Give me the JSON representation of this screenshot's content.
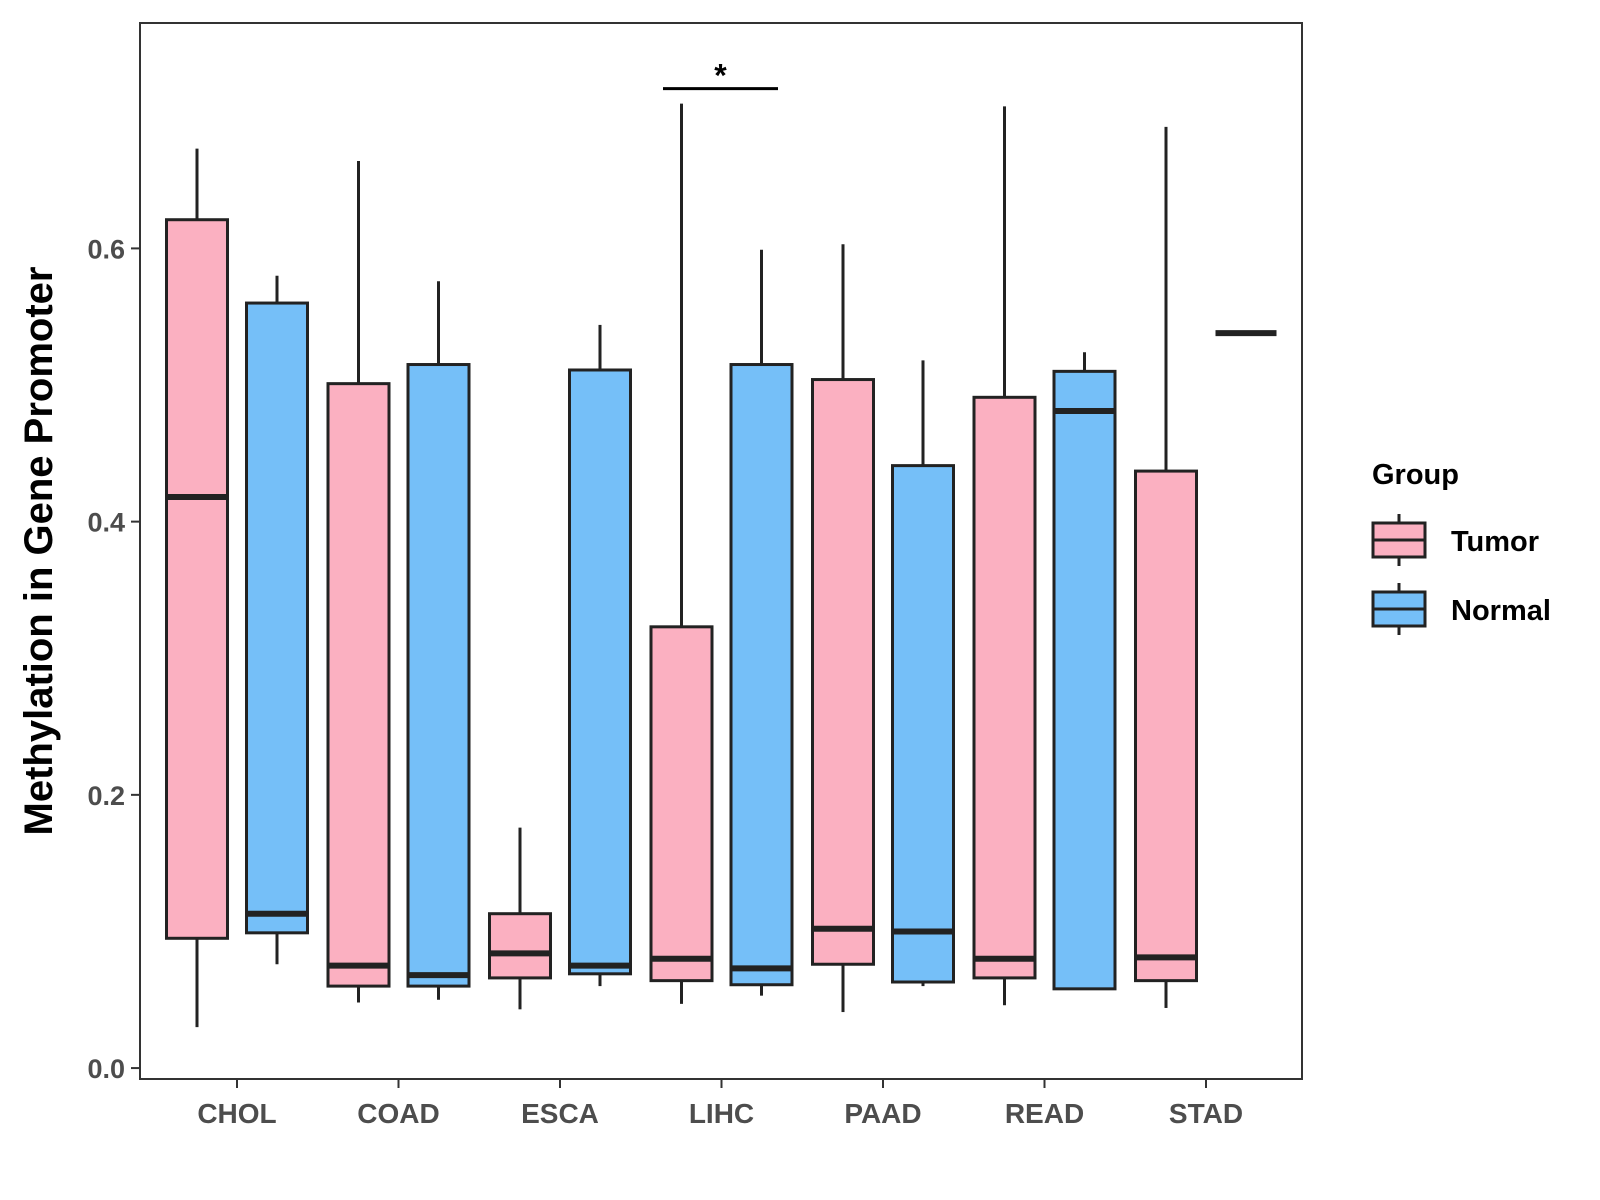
{
  "chart_data": {
    "type": "boxplot",
    "title": "",
    "xlabel": "",
    "ylabel": "Methylation in Gene Promoter",
    "ylim": [
      -0.008,
      0.765
    ],
    "yticks": [
      0.0,
      0.2,
      0.4,
      0.6
    ],
    "ytick_labels": [
      "0.0",
      "0.2",
      "0.4",
      "0.6"
    ],
    "categories": [
      "CHOL",
      "COAD",
      "ESCA",
      "LIHC",
      "PAAD",
      "READ",
      "STAD"
    ],
    "legend": {
      "title": "Group",
      "position": "right",
      "entries": [
        {
          "label": "Tumor",
          "color": "#FBB0C1"
        },
        {
          "label": "Normal",
          "color": "#75BFF8"
        }
      ]
    },
    "series": [
      {
        "name": "Tumor",
        "color": "#FBB0C1",
        "boxes": [
          {
            "category": "CHOL",
            "lower_whisker": 0.03,
            "q1": 0.095,
            "median": 0.418,
            "q3": 0.621,
            "upper_whisker": 0.673
          },
          {
            "category": "COAD",
            "lower_whisker": 0.048,
            "q1": 0.06,
            "median": 0.075,
            "q3": 0.501,
            "upper_whisker": 0.664
          },
          {
            "category": "ESCA",
            "lower_whisker": 0.043,
            "q1": 0.066,
            "median": 0.084,
            "q3": 0.113,
            "upper_whisker": 0.176
          },
          {
            "category": "LIHC",
            "lower_whisker": 0.047,
            "q1": 0.064,
            "median": 0.08,
            "q3": 0.323,
            "upper_whisker": 0.706
          },
          {
            "category": "PAAD",
            "lower_whisker": 0.041,
            "q1": 0.076,
            "median": 0.102,
            "q3": 0.504,
            "upper_whisker": 0.603
          },
          {
            "category": "READ",
            "lower_whisker": 0.046,
            "q1": 0.066,
            "median": 0.08,
            "q3": 0.491,
            "upper_whisker": 0.704
          },
          {
            "category": "STAD",
            "lower_whisker": 0.044,
            "q1": 0.064,
            "median": 0.081,
            "q3": 0.437,
            "upper_whisker": 0.689
          }
        ]
      },
      {
        "name": "Normal",
        "color": "#75BFF8",
        "boxes": [
          {
            "category": "CHOL",
            "lower_whisker": 0.076,
            "q1": 0.099,
            "median": 0.113,
            "q3": 0.56,
            "upper_whisker": 0.58
          },
          {
            "category": "COAD",
            "lower_whisker": 0.05,
            "q1": 0.06,
            "median": 0.068,
            "q3": 0.515,
            "upper_whisker": 0.576
          },
          {
            "category": "ESCA",
            "lower_whisker": 0.06,
            "q1": 0.069,
            "median": 0.075,
            "q3": 0.511,
            "upper_whisker": 0.544
          },
          {
            "category": "LIHC",
            "lower_whisker": 0.053,
            "q1": 0.061,
            "median": 0.073,
            "q3": 0.515,
            "upper_whisker": 0.599
          },
          {
            "category": "PAAD",
            "lower_whisker": 0.06,
            "q1": 0.063,
            "median": 0.1,
            "q3": 0.441,
            "upper_whisker": 0.518
          },
          {
            "category": "READ",
            "lower_whisker": 0.058,
            "q1": 0.058,
            "median": 0.481,
            "q3": 0.51,
            "upper_whisker": 0.524
          },
          {
            "category": "STAD",
            "lower_whisker": 0.538,
            "q1": 0.538,
            "median": 0.538,
            "q3": 0.538,
            "upper_whisker": 0.538
          }
        ]
      }
    ],
    "annotations": [
      {
        "type": "significance",
        "category": "LIHC",
        "text": "*",
        "y": 0.717
      }
    ]
  }
}
